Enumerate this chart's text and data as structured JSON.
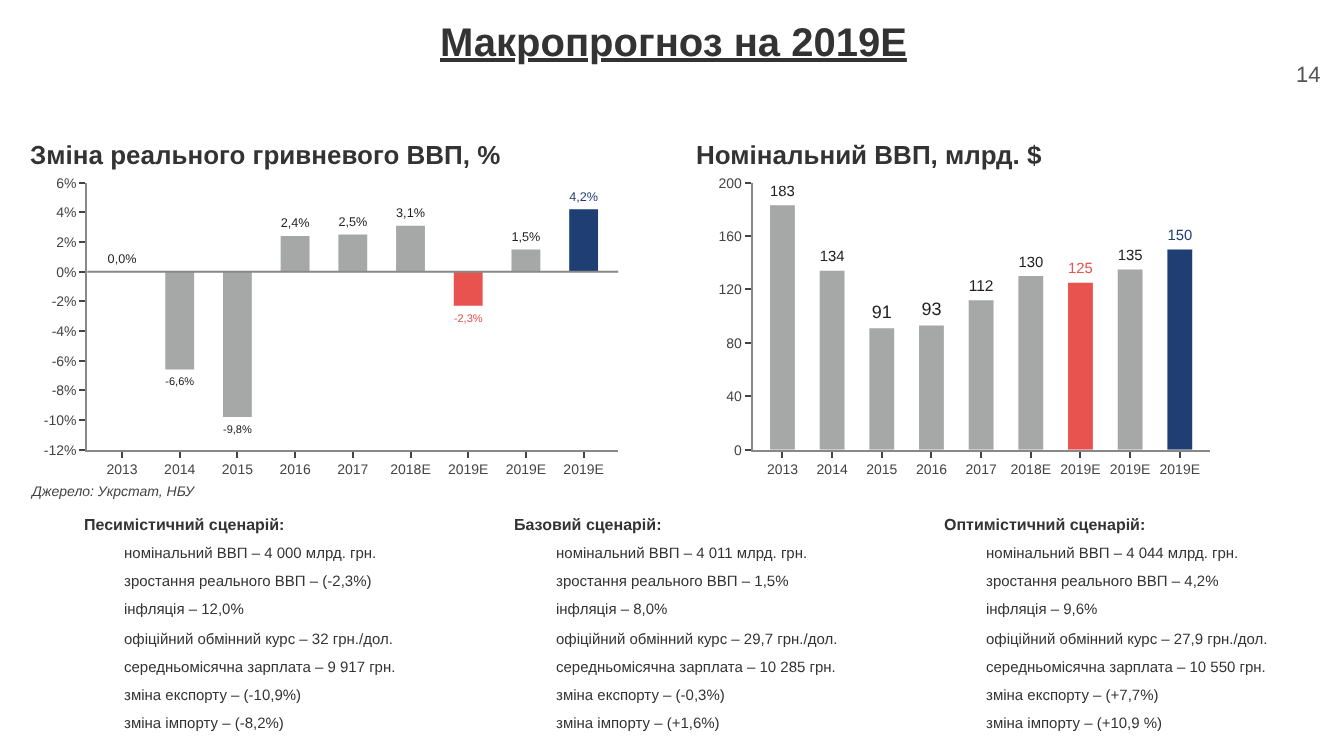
{
  "chart_data": [
    {
      "type": "bar",
      "title": "Зміна реального гривневого ВВП, %",
      "categories": [
        "2013",
        "2014",
        "2015",
        "2016",
        "2017",
        "2018E",
        "2019E",
        "2019E",
        "2019E"
      ],
      "values": [
        0.0,
        -6.6,
        -9.8,
        2.4,
        2.5,
        3.1,
        -2.3,
        1.5,
        4.2
      ],
      "value_labels": [
        "0,0%",
        "-6,6%",
        "-9,8%",
        "2,4%",
        "2,5%",
        "3,1%",
        "-2,3%",
        "1,5%",
        "4,2%"
      ],
      "colors": [
        "#a5a8a6",
        "#a5a8a6",
        "#a5a8a6",
        "#a5a8a6",
        "#a5a8a6",
        "#a5a8a6",
        "#e8534f",
        "#a5a8a6",
        "#1f3f74"
      ],
      "ylim": [
        -12,
        6
      ],
      "yticks": [
        {
          "value": -12,
          "label": "-12%"
        },
        {
          "value": -10,
          "label": "-10%"
        },
        {
          "value": -8,
          "label": "-8%"
        },
        {
          "value": -6,
          "label": "-6%"
        },
        {
          "value": -4,
          "label": "-4%"
        },
        {
          "value": -2,
          "label": "-2%"
        },
        {
          "value": 0,
          "label": "0%"
        },
        {
          "value": 2,
          "label": "2%"
        },
        {
          "value": 4,
          "label": "4%"
        },
        {
          "value": 6,
          "label": "6%"
        }
      ],
      "ref_lines": [
        {
          "axis": "y",
          "value": 0
        }
      ],
      "annotations": [
        "Джерело: Укрстат, НБУ"
      ]
    },
    {
      "type": "bar",
      "title": "Номінальний ВВП, млрд. $",
      "categories": [
        "2013",
        "2014",
        "2015",
        "2016",
        "2017",
        "2018E",
        "2019E",
        "2019E",
        "2019E"
      ],
      "values": [
        183,
        134,
        91,
        93,
        112,
        130,
        125,
        135,
        150
      ],
      "value_labels": [
        "183",
        "134",
        "91",
        "93",
        "112",
        "130",
        "125",
        "135",
        "150"
      ],
      "colors": [
        "#a5a8a6",
        "#a5a8a6",
        "#a5a8a6",
        "#a5a8a6",
        "#a5a8a6",
        "#a5a8a6",
        "#e8534f",
        "#a5a8a6",
        "#1f3f74"
      ],
      "ylim": [
        0,
        200
      ],
      "yticks": [
        0,
        40,
        80,
        120,
        160,
        200
      ]
    },
    {
      "type": "other",
      "title": "Макропрогноз на 2019E",
      "annotations": [
        "14",
        "Песимістичний сценарій:",
        "номінальний ВВП – 4 000 млрд. грн.",
        "зростання реального ВВП – (-2,3%)",
        "інфляція – 12,0%",
        "офіційний обмінний курс – 32 грн./дол.",
        "середньомісячна зарплата – 9 917 грн.",
        "зміна експорту – (-10,9%)",
        "зміна імпорту – (-8,2%)",
        "Базовий сценарій:",
        "номінальний ВВП – 4 011 млрд. грн.",
        "зростання реального ВВП – 1,5%",
        "інфляція – 8,0%",
        "офіційний обмінний курс – 29,7 грн./дол.",
        "середньомісячна зарплата – 10 285 грн.",
        "зміна експорту – (-0,3%)",
        "зміна імпорту – (+1,6%)",
        "Оптимістичний сценарій:",
        "номінальний ВВП – 4 044 млрд. грн.",
        "зростання реального ВВП – 4,2%",
        "інфляція – 9,6%",
        "офіційний обмінний курс – 27,9 грн./дол.",
        "середньомісячна зарплата – 10 550 грн.",
        "зміна експорту – (+7,7%)",
        "зміна імпорту – (+10,9 %)"
      ]
    }
  ]
}
